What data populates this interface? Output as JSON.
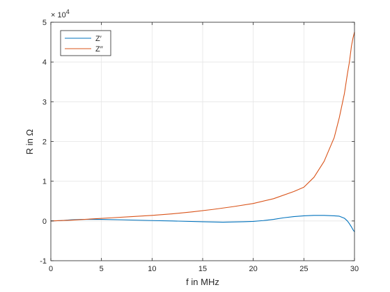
{
  "chart_data": {
    "type": "line",
    "xlabel": "f in MHz",
    "ylabel": "R in Ω",
    "y_exponent_label": "× 10",
    "y_exponent_power": "4",
    "xlim": [
      0,
      30
    ],
    "ylim": [
      -1,
      5
    ],
    "x_ticks": [
      "0",
      "5",
      "10",
      "15",
      "20",
      "25",
      "30"
    ],
    "y_ticks": [
      "-1",
      "0",
      "1",
      "2",
      "3",
      "4",
      "5"
    ],
    "grid": true,
    "legend_placement": "top-left",
    "colors": {
      "series1": "#0072BD",
      "series2": "#D95319",
      "grid": "#e5e5e5",
      "axis": "#262626"
    },
    "series": [
      {
        "name": "Z′",
        "color": "#0072BD",
        "x": [
          0,
          1,
          2,
          3,
          5,
          7,
          10,
          12,
          15,
          17,
          19,
          20,
          21,
          22,
          23,
          24,
          25,
          26,
          27,
          28,
          28.5,
          29,
          29.3,
          29.5,
          29.7,
          29.85,
          30
        ],
        "y": [
          0.0,
          0.01,
          0.03,
          0.04,
          0.04,
          0.03,
          0.01,
          0.0,
          -0.02,
          -0.03,
          -0.02,
          -0.01,
          0.01,
          0.04,
          0.08,
          0.11,
          0.13,
          0.14,
          0.14,
          0.13,
          0.12,
          0.07,
          0.0,
          -0.07,
          -0.15,
          -0.22,
          -0.27
        ]
      },
      {
        "name": "Z′′",
        "color": "#D95319",
        "x": [
          0,
          2,
          4,
          6,
          8,
          10,
          12,
          14,
          16,
          18,
          20,
          22,
          24,
          25,
          26,
          27,
          28,
          28.5,
          29,
          29.3,
          29.5,
          29.7,
          29.85,
          30
        ],
        "y": [
          0.0,
          0.02,
          0.05,
          0.08,
          0.11,
          0.14,
          0.18,
          0.23,
          0.29,
          0.36,
          0.44,
          0.56,
          0.74,
          0.85,
          1.1,
          1.5,
          2.1,
          2.6,
          3.2,
          3.7,
          4.0,
          4.4,
          4.6,
          4.75
        ]
      }
    ]
  }
}
